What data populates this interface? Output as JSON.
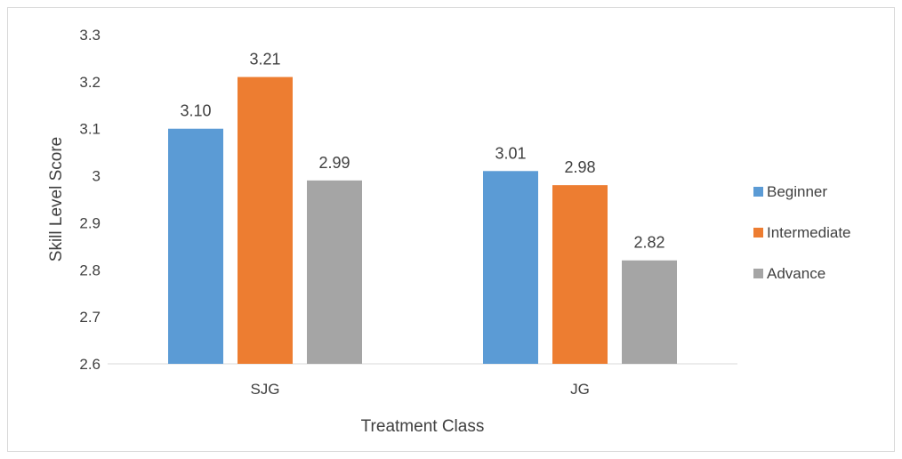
{
  "chart_data": {
    "type": "bar",
    "title": "",
    "xlabel": "Treatment Class",
    "ylabel": "Skill Level Score",
    "categories": [
      "SJG",
      "JG"
    ],
    "series": [
      {
        "name": "Beginner",
        "values": [
          3.1,
          3.01
        ],
        "labels": [
          "3.10",
          "3.01"
        ],
        "color": "#5b9bd5"
      },
      {
        "name": "Intermediate",
        "values": [
          3.21,
          2.98
        ],
        "labels": [
          "3.21",
          "2.98"
        ],
        "color": "#ed7d31"
      },
      {
        "name": "Advance",
        "values": [
          2.99,
          2.82
        ],
        "labels": [
          "2.99",
          "2.82"
        ],
        "color": "#a5a5a5"
      }
    ],
    "ylim": [
      2.6,
      3.3
    ],
    "yticks": [
      2.6,
      2.7,
      2.8,
      2.9,
      3.0,
      3.1,
      3.2,
      3.3
    ],
    "ytick_labels": [
      "2.6",
      "2.7",
      "2.8",
      "2.9",
      "3",
      "3.1",
      "3.2",
      "3.3"
    ],
    "grid": false,
    "legend_position": "right"
  }
}
